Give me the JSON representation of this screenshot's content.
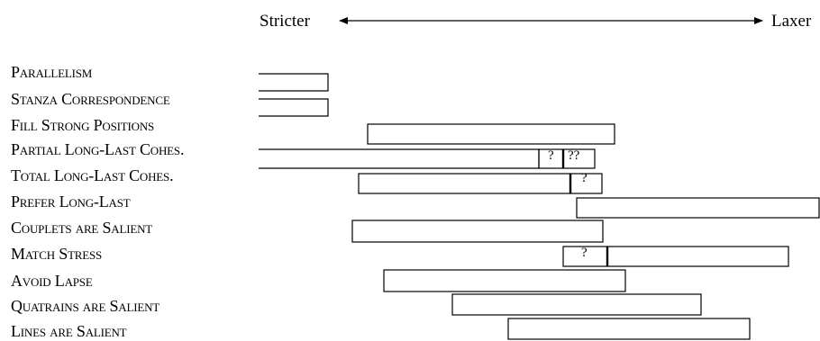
{
  "header": {
    "left": "Stricter",
    "right": "Laxer"
  },
  "constraints": [
    "Parallelism",
    "Stanza Correspondence",
    "Fill Strong Positions",
    "Partial Long-Last Cohes.",
    "Total Long-Last Cohes.",
    "Prefer Long-Last",
    "Couplets are Salient",
    "Match Stress",
    "Avoid Lapse",
    "Quatrains are Salient",
    "Lines are Salient"
  ],
  "uncertainty_marks": {
    "partial_a": "?",
    "partial_b": "??",
    "total": "?",
    "match_stress": "?"
  }
}
